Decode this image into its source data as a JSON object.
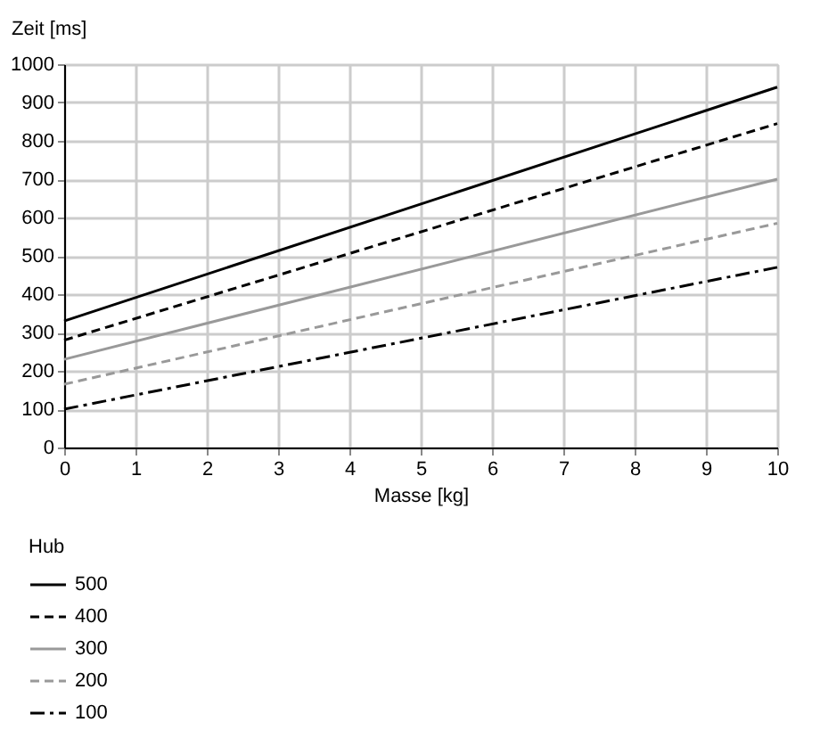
{
  "chart_data": {
    "type": "line",
    "xlabel": "Masse [kg]",
    "ylabel": "Zeit [ms]",
    "legend_title": "Hub",
    "x": [
      0,
      10
    ],
    "series": [
      {
        "name": "500",
        "color": "#000000",
        "values": [
          330,
          940
        ],
        "line_style": "solid"
      },
      {
        "name": "400",
        "color": "#000000",
        "values": [
          280,
          845
        ],
        "line_style": "dashed"
      },
      {
        "name": "300",
        "color": "#999999",
        "values": [
          230,
          700
        ],
        "line_style": "solid"
      },
      {
        "name": "200",
        "color": "#999999",
        "values": [
          165,
          585
        ],
        "line_style": "dashed"
      },
      {
        "name": "100",
        "color": "#000000",
        "values": [
          100,
          470
        ],
        "line_style": "dashdot"
      }
    ],
    "xlim": [
      0,
      10
    ],
    "xticks": [
      0,
      1,
      2,
      3,
      4,
      5,
      6,
      7,
      8,
      9,
      10
    ],
    "ylim": [
      0,
      1000
    ],
    "yticks": [
      0,
      100,
      200,
      300,
      400,
      500,
      600,
      700,
      800,
      900,
      1000
    ],
    "grid": true,
    "legend": "bottom left",
    "marker": "none"
  }
}
